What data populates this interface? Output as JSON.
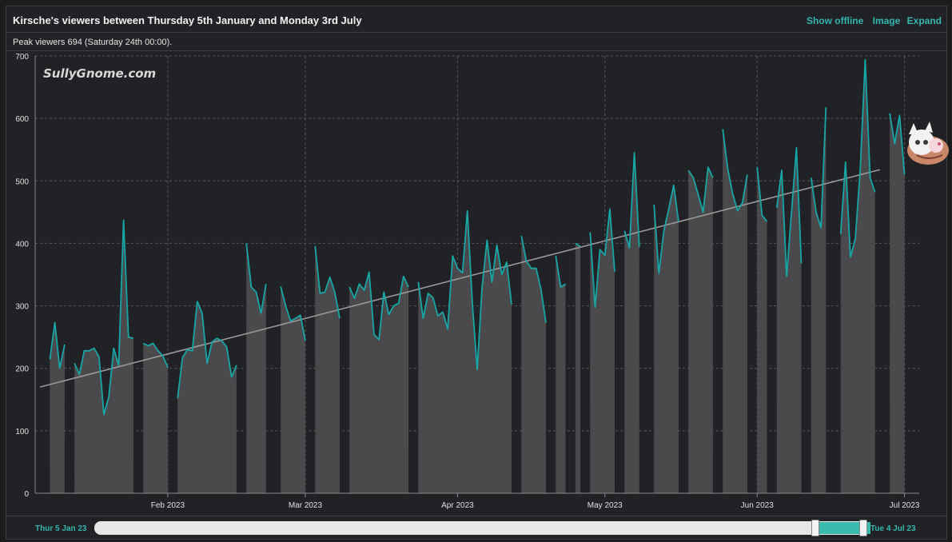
{
  "header": {
    "title": "Kirsche's viewers between Thursday 5th January and Monday 3rd July",
    "show_offline": "Show offline",
    "image": "Image",
    "expand": "Expand"
  },
  "subheader": {
    "peak": "Peak viewers 694 (Saturday 24th 00:00)."
  },
  "watermark": "SullyGnome.com",
  "navigator": {
    "start_label": "Thur 5 Jan 23",
    "end_label": "Tue 4 Jul 23"
  },
  "colors": {
    "line": "#17a6a6",
    "area": "#4a4a4c",
    "trend": "#9a9a9a",
    "accent": "#34b5b0"
  },
  "chart_data": {
    "type": "area",
    "title": "Kirsche's viewers between Thursday 5th January and Monday 3rd July",
    "x_start": "2023-01-05",
    "x_end": "2023-07-04",
    "ylim": [
      0,
      700
    ],
    "yticks": [
      0,
      100,
      200,
      300,
      400,
      500,
      600,
      700
    ],
    "xticks": [
      {
        "label": "Feb 2023",
        "date": "2023-02-01"
      },
      {
        "label": "Mar 2023",
        "date": "2023-03-01"
      },
      {
        "label": "Apr 2023",
        "date": "2023-04-01"
      },
      {
        "label": "May 2023",
        "date": "2023-05-01"
      },
      {
        "label": "Jun 2023",
        "date": "2023-06-01"
      },
      {
        "label": "Jul 2023",
        "date": "2023-07-01"
      }
    ],
    "grid": true,
    "trend": {
      "start": [
        "2023-01-06",
        170
      ],
      "end": [
        "2023-06-26",
        518
      ]
    },
    "series": [
      {
        "points": [
          [
            "2023-01-08",
            214
          ],
          [
            "2023-01-09",
            273
          ],
          [
            "2023-01-10",
            200
          ],
          [
            "2023-01-11",
            238
          ]
        ]
      },
      {
        "points": [
          [
            "2023-01-13",
            208
          ],
          [
            "2023-01-14",
            190
          ],
          [
            "2023-01-15",
            228
          ],
          [
            "2023-01-16",
            228
          ],
          [
            "2023-01-17",
            232
          ],
          [
            "2023-01-18",
            218
          ],
          [
            "2023-01-19",
            126
          ],
          [
            "2023-01-20",
            155
          ],
          [
            "2023-01-21",
            232
          ],
          [
            "2023-01-22",
            205
          ],
          [
            "2023-01-23",
            437
          ],
          [
            "2023-01-24",
            250
          ],
          [
            "2023-01-25",
            248
          ]
        ]
      },
      {
        "points": [
          [
            "2023-01-27",
            240
          ],
          [
            "2023-01-28",
            236
          ],
          [
            "2023-01-29",
            240
          ],
          [
            "2023-01-30",
            228
          ],
          [
            "2023-01-31",
            220
          ],
          [
            "2023-02-01",
            201
          ]
        ]
      },
      {
        "points": [
          [
            "2023-02-03",
            152
          ],
          [
            "2023-02-04",
            217
          ],
          [
            "2023-02-05",
            230
          ],
          [
            "2023-02-06",
            228
          ],
          [
            "2023-02-07",
            307
          ],
          [
            "2023-02-08",
            288
          ],
          [
            "2023-02-09",
            208
          ],
          [
            "2023-02-10",
            242
          ],
          [
            "2023-02-11",
            248
          ],
          [
            "2023-02-12",
            244
          ],
          [
            "2023-02-13",
            234
          ],
          [
            "2023-02-14",
            186
          ],
          [
            "2023-02-15",
            205
          ]
        ]
      },
      {
        "points": [
          [
            "2023-02-17",
            400
          ],
          [
            "2023-02-18",
            330
          ],
          [
            "2023-02-19",
            322
          ],
          [
            "2023-02-20",
            288
          ],
          [
            "2023-02-21",
            335
          ]
        ]
      },
      {
        "points": [
          [
            "2023-02-24",
            331
          ],
          [
            "2023-02-25",
            300
          ],
          [
            "2023-02-26",
            276
          ],
          [
            "2023-02-27",
            280
          ],
          [
            "2023-02-28",
            285
          ],
          [
            "2023-03-01",
            244
          ]
        ]
      },
      {
        "points": [
          [
            "2023-03-03",
            396
          ],
          [
            "2023-03-04",
            320
          ],
          [
            "2023-03-05",
            322
          ],
          [
            "2023-03-06",
            346
          ],
          [
            "2023-03-07",
            322
          ],
          [
            "2023-03-08",
            280
          ]
        ]
      },
      {
        "points": [
          [
            "2023-03-10",
            330
          ],
          [
            "2023-03-11",
            312
          ],
          [
            "2023-03-12",
            335
          ],
          [
            "2023-03-13",
            325
          ],
          [
            "2023-03-14",
            354
          ],
          [
            "2023-03-15",
            254
          ],
          [
            "2023-03-16",
            246
          ],
          [
            "2023-03-17",
            322
          ],
          [
            "2023-03-18",
            286
          ],
          [
            "2023-03-19",
            300
          ],
          [
            "2023-03-20",
            304
          ],
          [
            "2023-03-21",
            347
          ],
          [
            "2023-03-22",
            330
          ]
        ]
      },
      {
        "points": [
          [
            "2023-03-24",
            338
          ],
          [
            "2023-03-25",
            280
          ],
          [
            "2023-03-26",
            320
          ],
          [
            "2023-03-27",
            313
          ],
          [
            "2023-03-28",
            284
          ],
          [
            "2023-03-29",
            290
          ],
          [
            "2023-03-30",
            263
          ],
          [
            "2023-03-31",
            380
          ],
          [
            "2023-04-01",
            360
          ],
          [
            "2023-04-02",
            353
          ],
          [
            "2023-04-03",
            452
          ],
          [
            "2023-04-04",
            305
          ],
          [
            "2023-04-05",
            198
          ],
          [
            "2023-04-06",
            330
          ],
          [
            "2023-04-07",
            405
          ],
          [
            "2023-04-08",
            338
          ],
          [
            "2023-04-09",
            397
          ],
          [
            "2023-04-10",
            350
          ],
          [
            "2023-04-11",
            370
          ],
          [
            "2023-04-12",
            302
          ]
        ]
      },
      {
        "points": [
          [
            "2023-04-14",
            412
          ],
          [
            "2023-04-15",
            372
          ],
          [
            "2023-04-16",
            360
          ],
          [
            "2023-04-17",
            360
          ],
          [
            "2023-04-18",
            326
          ],
          [
            "2023-04-19",
            273
          ]
        ]
      },
      {
        "points": [
          [
            "2023-04-21",
            380
          ],
          [
            "2023-04-22",
            330
          ],
          [
            "2023-04-23",
            335
          ]
        ]
      },
      {
        "points": [
          [
            "2023-04-25",
            400
          ],
          [
            "2023-04-26",
            395
          ]
        ]
      },
      {
        "points": [
          [
            "2023-04-28",
            418
          ],
          [
            "2023-04-29",
            298
          ],
          [
            "2023-04-30",
            390
          ],
          [
            "2023-05-01",
            381
          ],
          [
            "2023-05-02",
            455
          ],
          [
            "2023-05-03",
            355
          ]
        ]
      },
      {
        "points": [
          [
            "2023-05-05",
            420
          ],
          [
            "2023-05-06",
            393
          ],
          [
            "2023-05-07",
            545
          ],
          [
            "2023-05-08",
            394
          ]
        ]
      },
      {
        "points": [
          [
            "2023-05-11",
            462
          ],
          [
            "2023-05-12",
            352
          ],
          [
            "2023-05-13",
            420
          ],
          [
            "2023-05-14",
            455
          ],
          [
            "2023-05-15",
            493
          ],
          [
            "2023-05-16",
            435
          ]
        ]
      },
      {
        "points": [
          [
            "2023-05-18",
            517
          ],
          [
            "2023-05-19",
            505
          ],
          [
            "2023-05-20",
            478
          ],
          [
            "2023-05-21",
            450
          ],
          [
            "2023-05-22",
            522
          ],
          [
            "2023-05-23",
            505
          ]
        ]
      },
      {
        "points": [
          [
            "2023-05-25",
            583
          ],
          [
            "2023-05-26",
            520
          ],
          [
            "2023-05-27",
            480
          ],
          [
            "2023-05-28",
            452
          ],
          [
            "2023-05-29",
            465
          ],
          [
            "2023-05-30",
            510
          ]
        ]
      },
      {
        "points": [
          [
            "2023-06-01",
            522
          ],
          [
            "2023-06-02",
            445
          ],
          [
            "2023-06-03",
            435
          ]
        ]
      },
      {
        "points": [
          [
            "2023-06-05",
            457
          ],
          [
            "2023-06-06",
            517
          ],
          [
            "2023-06-07",
            347
          ],
          [
            "2023-06-08",
            450
          ],
          [
            "2023-06-09",
            553
          ],
          [
            "2023-06-10",
            368
          ]
        ]
      },
      {
        "points": [
          [
            "2023-06-12",
            505
          ],
          [
            "2023-06-13",
            450
          ],
          [
            "2023-06-14",
            425
          ],
          [
            "2023-06-15",
            618
          ]
        ]
      },
      {
        "points": [
          [
            "2023-06-18",
            415
          ],
          [
            "2023-06-19",
            530
          ],
          [
            "2023-06-20",
            378
          ],
          [
            "2023-06-21",
            408
          ],
          [
            "2023-06-22",
            520
          ],
          [
            "2023-06-23",
            694
          ],
          [
            "2023-06-24",
            505
          ],
          [
            "2023-06-25",
            482
          ]
        ]
      },
      {
        "points": [
          [
            "2023-06-28",
            608
          ],
          [
            "2023-06-29",
            560
          ],
          [
            "2023-06-30",
            605
          ],
          [
            "2023-07-01",
            510
          ]
        ]
      }
    ]
  }
}
